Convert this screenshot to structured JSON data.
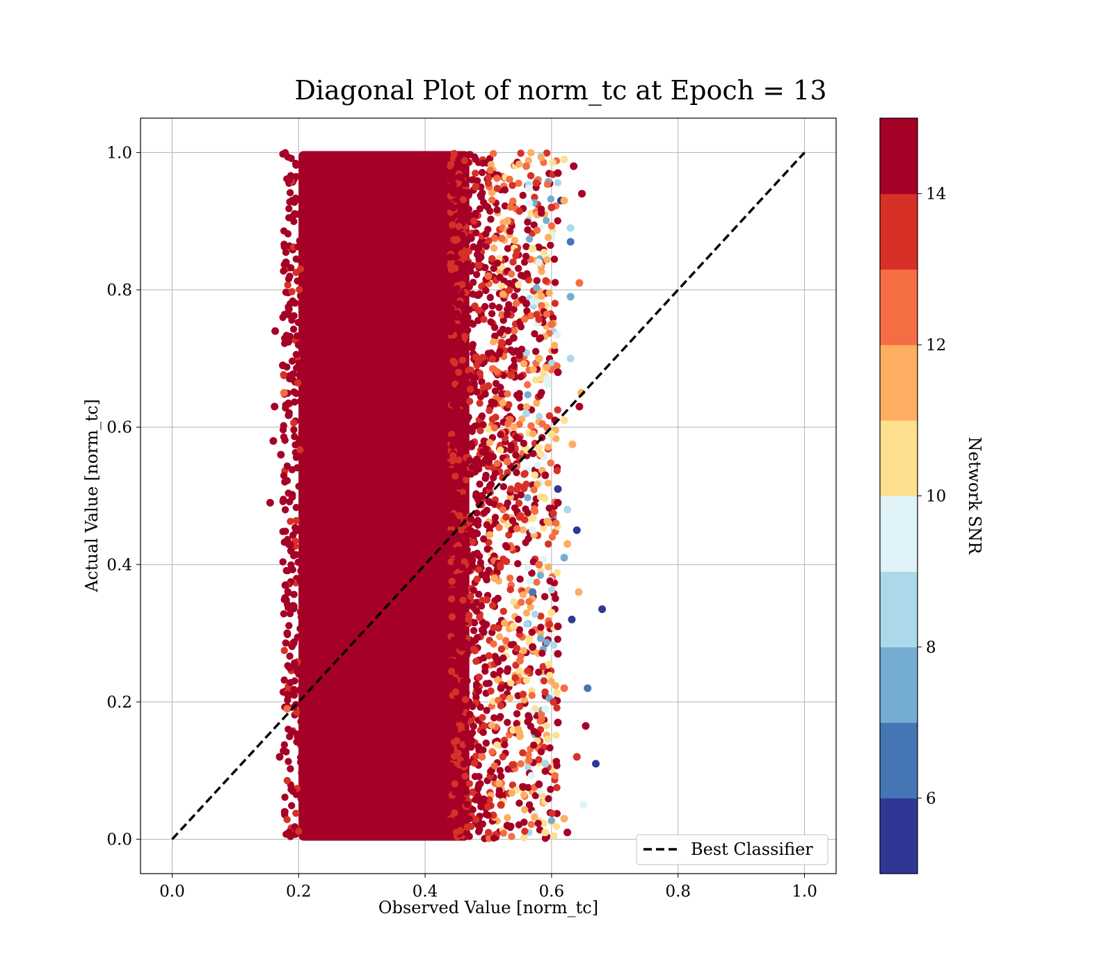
{
  "chart_data": {
    "type": "scatter",
    "title": "Diagonal Plot of norm_tc at Epoch = 13",
    "xlabel": "Observed Value [norm_tc]",
    "ylabel": "Actual Value [norm_tc]",
    "xlim": [
      -0.05,
      1.05
    ],
    "ylim": [
      -0.05,
      1.05
    ],
    "x_ticks": [
      "0.0",
      "0.2",
      "0.4",
      "0.6",
      "0.8",
      "1.0"
    ],
    "y_ticks": [
      "0.0",
      "0.2",
      "0.4",
      "0.6",
      "0.8",
      "1.0"
    ],
    "grid": true,
    "legend": {
      "placement": "lower-right",
      "entries": [
        "Best Classifier"
      ]
    },
    "reference_line": {
      "name": "Best Classifier",
      "x": [
        0.0,
        1.0
      ],
      "y": [
        0.0,
        1.0
      ],
      "style": "dashed",
      "color": "#000000"
    },
    "colorbar": {
      "label": "Network SNR",
      "range": [
        5,
        15
      ],
      "ticks": [
        "6",
        "8",
        "10",
        "12",
        "14"
      ],
      "levels": [
        5,
        6,
        7,
        8,
        9,
        10,
        11,
        12,
        13,
        14,
        15
      ],
      "colors": [
        "#313695",
        "#4575b4",
        "#74add1",
        "#abd9e9",
        "#e0f3f8",
        "#fee090",
        "#fdae61",
        "#f46d43",
        "#d73027",
        "#a50026"
      ]
    },
    "scatter_summary": {
      "dense_core": {
        "x_range": [
          0.2,
          0.47
        ],
        "y_range": [
          0.0,
          1.0
        ],
        "color": "#a50026"
      },
      "sparse_fringe": {
        "x_range": [
          0.15,
          0.68
        ],
        "y_range": [
          0.0,
          1.0
        ]
      }
    },
    "points": [
      {
        "x": 0.155,
        "y": 0.49,
        "c": 14.5
      },
      {
        "x": 0.163,
        "y": 0.74,
        "c": 14.5
      },
      {
        "x": 0.16,
        "y": 0.58,
        "c": 14.5
      },
      {
        "x": 0.162,
        "y": 0.63,
        "c": 14.5
      },
      {
        "x": 0.17,
        "y": 0.12,
        "c": 14.5
      },
      {
        "x": 0.178,
        "y": 0.04,
        "c": 14.5
      },
      {
        "x": 0.182,
        "y": 0.19,
        "c": 12.5
      },
      {
        "x": 0.185,
        "y": 0.96,
        "c": 14.5
      },
      {
        "x": 0.19,
        "y": 0.93,
        "c": 14.5
      },
      {
        "x": 0.172,
        "y": 0.56,
        "c": 14.5
      },
      {
        "x": 0.175,
        "y": 0.69,
        "c": 14.5
      },
      {
        "x": 0.18,
        "y": 0.84,
        "c": 14.5
      },
      {
        "x": 0.182,
        "y": 0.3,
        "c": 14.5
      },
      {
        "x": 0.185,
        "y": 0.01,
        "c": 14.5
      },
      {
        "x": 0.177,
        "y": 0.65,
        "c": 12.5
      },
      {
        "x": 0.188,
        "y": 0.42,
        "c": 14.5
      },
      {
        "x": 0.186,
        "y": 0.25,
        "c": 14.5
      },
      {
        "x": 0.179,
        "y": 0.37,
        "c": 14.5
      },
      {
        "x": 0.48,
        "y": 0.95,
        "c": 13.5
      },
      {
        "x": 0.49,
        "y": 0.12,
        "c": 12.5
      },
      {
        "x": 0.5,
        "y": 0.66,
        "c": 13.5
      },
      {
        "x": 0.51,
        "y": 0.38,
        "c": 11.5
      },
      {
        "x": 0.49,
        "y": 0.5,
        "c": 14.5
      },
      {
        "x": 0.5,
        "y": 0.82,
        "c": 12.5
      },
      {
        "x": 0.52,
        "y": 0.22,
        "c": 14.5
      },
      {
        "x": 0.53,
        "y": 0.9,
        "c": 11.5
      },
      {
        "x": 0.52,
        "y": 0.05,
        "c": 13.5
      },
      {
        "x": 0.53,
        "y": 0.55,
        "c": 12.5
      },
      {
        "x": 0.54,
        "y": 0.73,
        "c": 14.5
      },
      {
        "x": 0.54,
        "y": 0.31,
        "c": 10.5
      },
      {
        "x": 0.55,
        "y": 0.47,
        "c": 13.5
      },
      {
        "x": 0.55,
        "y": 0.15,
        "c": 11.5
      },
      {
        "x": 0.56,
        "y": 0.98,
        "c": 12.5
      },
      {
        "x": 0.56,
        "y": 0.62,
        "c": 8.5
      },
      {
        "x": 0.57,
        "y": 0.28,
        "c": 14.5
      },
      {
        "x": 0.57,
        "y": 0.86,
        "c": 10.5
      },
      {
        "x": 0.58,
        "y": 0.4,
        "c": 12.5
      },
      {
        "x": 0.58,
        "y": 0.08,
        "c": 14.5
      },
      {
        "x": 0.58,
        "y": 0.7,
        "c": 11.5
      },
      {
        "x": 0.59,
        "y": 0.19,
        "c": 9.5
      },
      {
        "x": 0.59,
        "y": 0.53,
        "c": 14.5
      },
      {
        "x": 0.6,
        "y": 0.92,
        "c": 13.5
      },
      {
        "x": 0.6,
        "y": 0.33,
        "c": 10.5
      },
      {
        "x": 0.56,
        "y": 0.78,
        "c": 14.5
      },
      {
        "x": 0.57,
        "y": 0.45,
        "c": 9.5
      },
      {
        "x": 0.55,
        "y": 0.26,
        "c": 12.5
      },
      {
        "x": 0.54,
        "y": 0.6,
        "c": 11.5
      },
      {
        "x": 0.53,
        "y": 0.02,
        "c": 14.5
      },
      {
        "x": 0.61,
        "y": 0.97,
        "c": 14.5
      },
      {
        "x": 0.61,
        "y": 0.68,
        "c": 14.5
      },
      {
        "x": 0.61,
        "y": 0.49,
        "c": 14.5
      },
      {
        "x": 0.61,
        "y": 0.27,
        "c": 14.5
      },
      {
        "x": 0.61,
        "y": 0.31,
        "c": 14.5
      },
      {
        "x": 0.61,
        "y": 0.17,
        "c": 14.5
      },
      {
        "x": 0.61,
        "y": 0.51,
        "c": 5.5
      },
      {
        "x": 0.615,
        "y": 0.93,
        "c": 5.5
      },
      {
        "x": 0.62,
        "y": 0.99,
        "c": 10.5
      },
      {
        "x": 0.62,
        "y": 0.93,
        "c": 11.5
      },
      {
        "x": 0.62,
        "y": 0.61,
        "c": 10.5
      },
      {
        "x": 0.62,
        "y": 0.41,
        "c": 7.5
      },
      {
        "x": 0.62,
        "y": 0.22,
        "c": 12.5
      },
      {
        "x": 0.62,
        "y": 0.03,
        "c": 11.5
      },
      {
        "x": 0.625,
        "y": 0.48,
        "c": 8.5
      },
      {
        "x": 0.625,
        "y": 0.01,
        "c": 14.5
      },
      {
        "x": 0.625,
        "y": 0.43,
        "c": 11.5
      },
      {
        "x": 0.63,
        "y": 0.89,
        "c": 8.5
      },
      {
        "x": 0.63,
        "y": 0.87,
        "c": 6.5
      },
      {
        "x": 0.63,
        "y": 0.7,
        "c": 8.5
      },
      {
        "x": 0.63,
        "y": 0.79,
        "c": 7.5
      },
      {
        "x": 0.633,
        "y": 0.575,
        "c": 11.5
      },
      {
        "x": 0.632,
        "y": 0.32,
        "c": 5.5
      },
      {
        "x": 0.635,
        "y": 0.98,
        "c": 14.5
      },
      {
        "x": 0.64,
        "y": 0.12,
        "c": 13.5
      },
      {
        "x": 0.64,
        "y": 0.45,
        "c": 5.5
      },
      {
        "x": 0.643,
        "y": 0.36,
        "c": 11.5
      },
      {
        "x": 0.644,
        "y": 0.81,
        "c": 12.5
      },
      {
        "x": 0.644,
        "y": 0.63,
        "c": 14.5
      },
      {
        "x": 0.647,
        "y": 0.65,
        "c": 11.5
      },
      {
        "x": 0.648,
        "y": 0.94,
        "c": 14.5
      },
      {
        "x": 0.65,
        "y": 0.05,
        "c": 9.5
      },
      {
        "x": 0.654,
        "y": 0.165,
        "c": 14.5
      },
      {
        "x": 0.657,
        "y": 0.22,
        "c": 6.5
      },
      {
        "x": 0.67,
        "y": 0.11,
        "c": 5.5
      },
      {
        "x": 0.68,
        "y": 0.335,
        "c": 5.5
      },
      {
        "x": 0.6,
        "y": 0.59,
        "c": 10.5
      },
      {
        "x": 0.59,
        "y": 0.11,
        "c": 8.5
      },
      {
        "x": 0.58,
        "y": 0.84,
        "c": 9.5
      },
      {
        "x": 0.57,
        "y": 0.36,
        "c": 6.5
      },
      {
        "x": 0.6,
        "y": 0.75,
        "c": 12.5
      },
      {
        "x": 0.59,
        "y": 0.01,
        "c": 10.5
      }
    ]
  }
}
